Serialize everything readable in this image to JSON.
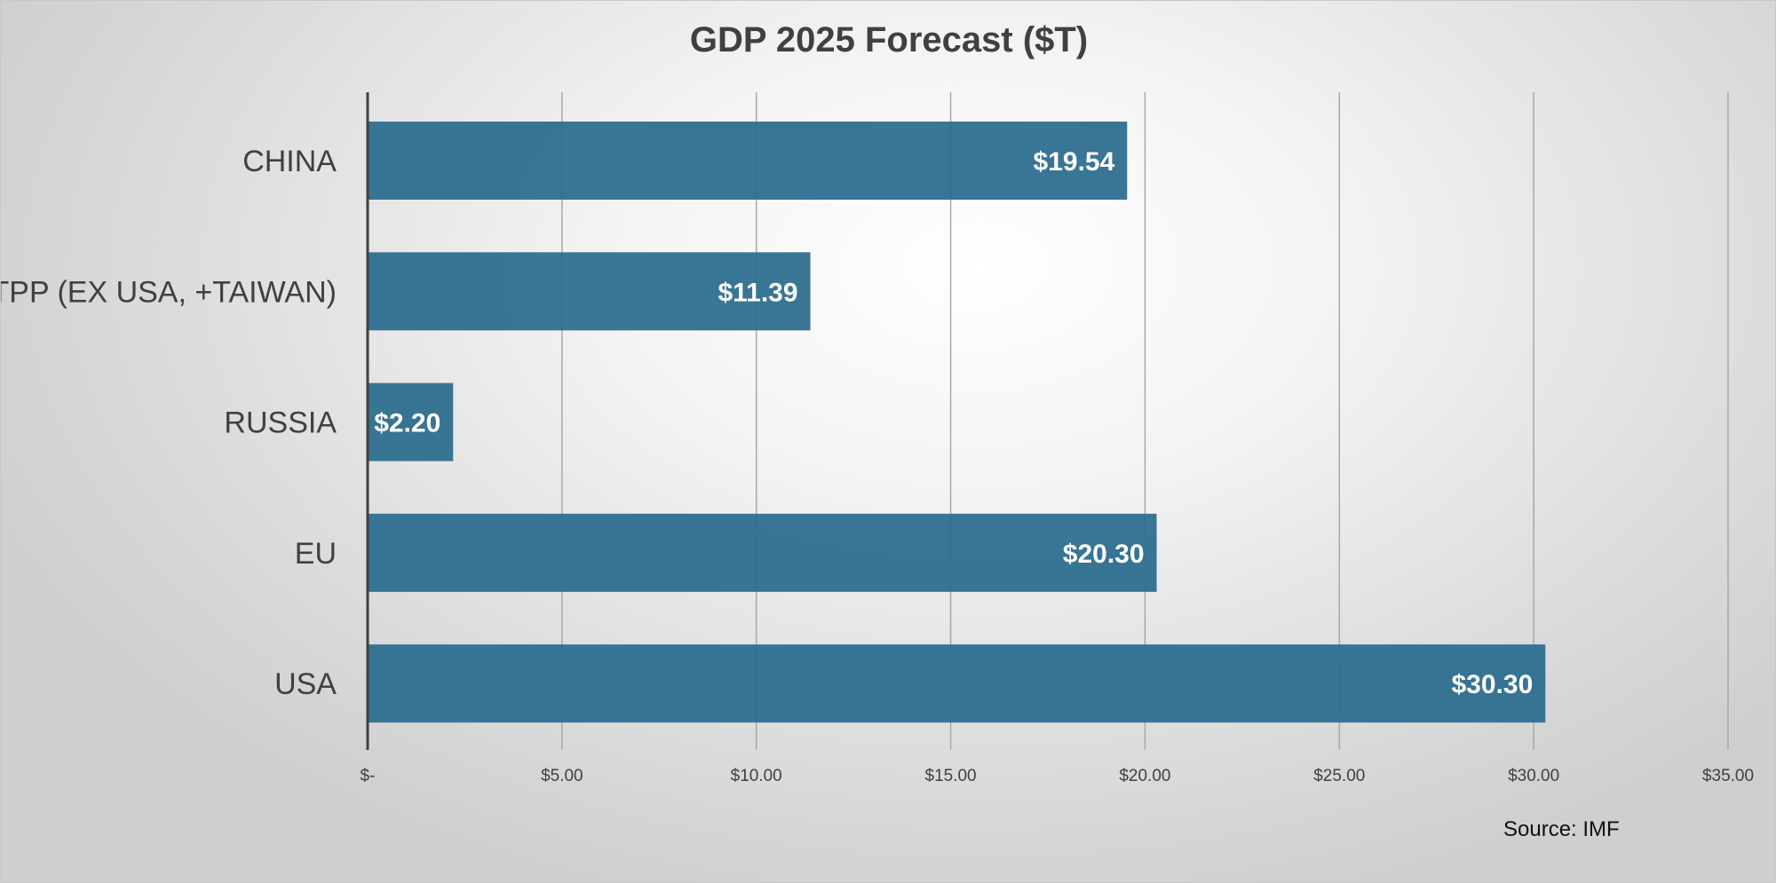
{
  "chart_data": {
    "type": "bar",
    "orientation": "horizontal",
    "title": "GDP 2025 Forecast ($T)",
    "categories": [
      "CHINA",
      "TPP (EX USA, +TAIWAN)",
      "RUSSIA",
      "EU",
      "USA"
    ],
    "values": [
      19.54,
      11.39,
      2.2,
      20.3,
      30.3
    ],
    "data_labels": [
      "$19.54",
      "$11.39",
      "$2.20",
      "$20.30",
      "$30.30"
    ],
    "xlim": [
      0,
      35
    ],
    "x_ticks": [
      0,
      5,
      10,
      15,
      20,
      25,
      30,
      35
    ],
    "x_tick_labels": [
      "$-",
      "$5.00",
      "$10.00",
      "$15.00",
      "$20.00",
      "$25.00",
      "$30.00",
      "$35.00"
    ],
    "xlabel": "",
    "ylabel": "",
    "grid": "vertical",
    "bar_color": "#2e6e8e",
    "source": "Source: IMF"
  }
}
